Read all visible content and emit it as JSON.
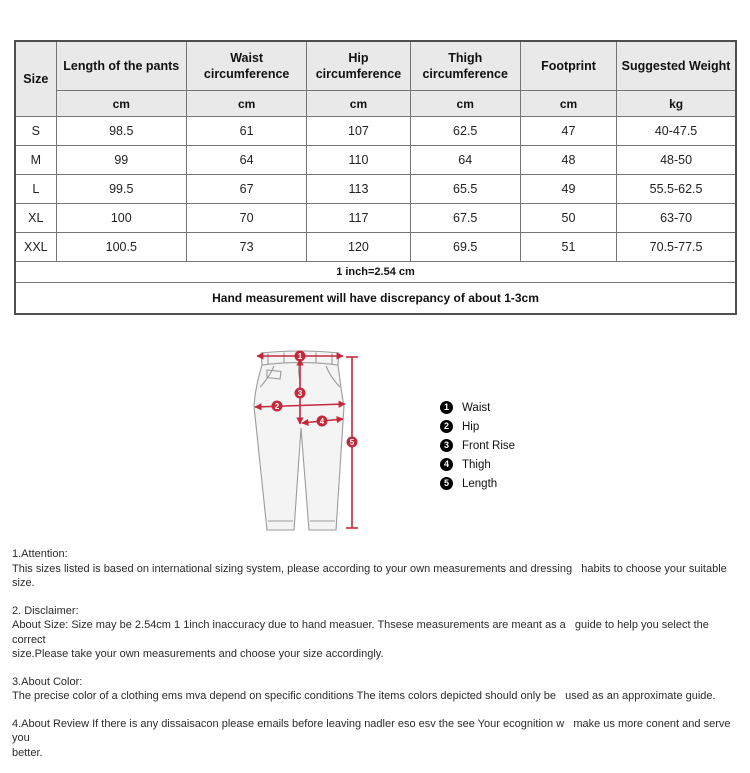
{
  "size_chart": {
    "header": {
      "size_label": "Size",
      "columns": [
        {
          "label": "Length of the pants",
          "unit": "cm"
        },
        {
          "label": "Waist circumference",
          "unit": "cm"
        },
        {
          "label": "Hip circumference",
          "unit": "cm"
        },
        {
          "label": "Thigh circumference",
          "unit": "cm"
        },
        {
          "label": "Footprint",
          "unit": "cm"
        },
        {
          "label": "Suggested Weight",
          "unit": "kg"
        }
      ]
    },
    "rows": [
      [
        "S",
        "98.5",
        "61",
        "107",
        "62.5",
        "47",
        "40-47.5"
      ],
      [
        "M",
        "99",
        "64",
        "110",
        "64",
        "48",
        "48-50"
      ],
      [
        "L",
        "99.5",
        "67",
        "113",
        "65.5",
        "49",
        "55.5-62.5"
      ],
      [
        "XL",
        "100",
        "70",
        "117",
        "67.5",
        "50",
        "63-70"
      ],
      [
        "XXL",
        "100.5",
        "73",
        "120",
        "69.5",
        "51",
        "70.5-77.5"
      ]
    ],
    "table_notes": [
      "1 inch=2.54 cm",
      "Hand measurement will have discrepancy of about 1-3cm"
    ]
  },
  "diagram": {
    "accent_red": "#c4293b",
    "markers": [
      {
        "num": "1",
        "label": "Waist"
      },
      {
        "num": "2",
        "label": "Hip"
      },
      {
        "num": "3",
        "label": "Front Rise"
      },
      {
        "num": "4",
        "label": "Thigh"
      },
      {
        "num": "5",
        "label": "Length"
      }
    ]
  },
  "notes_sections": [
    {
      "title": "1.Attention:",
      "body": "This sizes listed is based on international sizing system, please according to your own measurements and dressing   habits to choose your suitable size."
    },
    {
      "title": "2. Disclaimer:",
      "body": "About Size: Size may be 2.54cm 1 1inch inaccuracy due to hand measuer. Thsese measurements are meant as a   guide to help you select the correct\nsize.Please take your own measurements and choose your size accordingly."
    },
    {
      "title": "3.About Color:",
      "body": "The precise color of a clothing ems mva depend on specific conditions The items colors depicted should only be   used as an approximate guide."
    },
    {
      "title": "",
      "body": "4.About Review If there is any dissaisacon please emails before leaving nadler eso esv the see Your ecognition w   make us more conent and serve you\nbetter."
    }
  ]
}
